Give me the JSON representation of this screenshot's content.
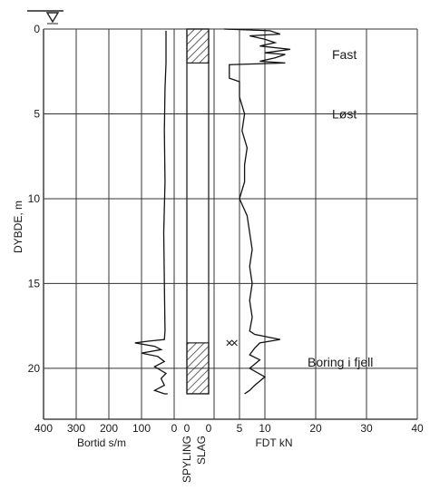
{
  "chart_data": {
    "type": "line",
    "ylabel": "DYBDE, m",
    "ylim": [
      0,
      23
    ],
    "y_inverted": true,
    "y_ticks": [
      0,
      5,
      10,
      15,
      20
    ],
    "left_panel": {
      "xlabel": "Bortid s/m",
      "x_ticks": [
        400,
        300,
        200,
        100,
        0
      ],
      "xlim": [
        400,
        0
      ],
      "series": [
        {
          "points": [
            [
              25,
              0.1
            ],
            [
              25,
              2.0
            ],
            [
              28,
              3.5
            ],
            [
              30,
              6.0
            ],
            [
              28,
              9.0
            ],
            [
              32,
              12.0
            ],
            [
              30,
              15.0
            ],
            [
              28,
              17.8
            ],
            [
              30,
              18.3
            ],
            [
              80,
              18.4
            ],
            [
              120,
              18.5
            ],
            [
              60,
              18.7
            ],
            [
              40,
              18.9
            ],
            [
              100,
              19.1
            ],
            [
              50,
              19.3
            ],
            [
              30,
              19.6
            ],
            [
              60,
              19.9
            ],
            [
              25,
              20.3
            ],
            [
              40,
              20.6
            ],
            [
              30,
              21.0
            ],
            [
              60,
              21.3
            ],
            [
              30,
              21.5
            ],
            [
              20,
              21.5
            ]
          ]
        }
      ]
    },
    "drilling_method": {
      "labels": [
        "SPYLING",
        "SLAG"
      ],
      "x_ticks": [
        0,
        0
      ],
      "upper_hatched_interval": [
        0,
        2.0
      ],
      "lower_hatched_interval": [
        18.5,
        21.5
      ]
    },
    "right_panel": {
      "xlabel": "FDT kN",
      "x_ticks": [
        0,
        5,
        10,
        20,
        30,
        40
      ],
      "xlim": [
        0,
        40
      ],
      "series": [
        {
          "points": [
            [
              2,
              0
            ],
            [
              11,
              0.1
            ],
            [
              13,
              0.3
            ],
            [
              7,
              0.4
            ],
            [
              10,
              0.6
            ],
            [
              12,
              0.8
            ],
            [
              9,
              1.0
            ],
            [
              15,
              1.2
            ],
            [
              10,
              1.4
            ],
            [
              14,
              1.5
            ],
            [
              12,
              1.7
            ],
            [
              9,
              1.9
            ],
            [
              14,
              2.0
            ],
            [
              3,
              2.1
            ],
            [
              3,
              2.9
            ],
            [
              5,
              3.1
            ],
            [
              5,
              4.0
            ],
            [
              6,
              5.0
            ],
            [
              5.5,
              6.0
            ],
            [
              6.5,
              7.0
            ],
            [
              6,
              8.0
            ],
            [
              6,
              9.0
            ],
            [
              5,
              10.0
            ],
            [
              6.5,
              11.0
            ],
            [
              7,
              12.0
            ],
            [
              7.5,
              13.0
            ],
            [
              7,
              14.0
            ],
            [
              7.5,
              15.0
            ],
            [
              7,
              16.0
            ],
            [
              7.5,
              17.0
            ],
            [
              7,
              17.8
            ],
            [
              8,
              18.0
            ],
            [
              13,
              18.3
            ],
            [
              9,
              18.5
            ],
            [
              8,
              18.8
            ],
            [
              7,
              19.2
            ],
            [
              9,
              19.5
            ],
            [
              7,
              20.0
            ],
            [
              10,
              20.5
            ],
            [
              8,
              21.0
            ],
            [
              7,
              21.3
            ],
            [
              6,
              21.5
            ]
          ]
        }
      ],
      "cross_markers_depth": 18.5,
      "cross_markers_x": [
        3,
        4
      ]
    },
    "annotations": [
      {
        "text": "Fast",
        "depth": 1.5
      },
      {
        "text": "Løst",
        "depth": 5.0
      },
      {
        "text": "Boring i fjell",
        "depth": 20.0
      }
    ]
  }
}
